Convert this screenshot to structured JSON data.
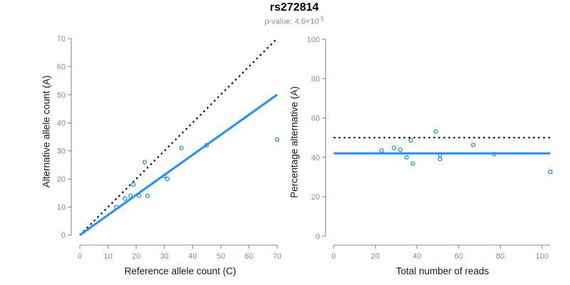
{
  "figure": {
    "title": "rs272814",
    "subtitle_prefix": "p-value: 4.6×10",
    "subtitle_exponent": "-5"
  },
  "colors": {
    "accent_blue": "#1E90FF",
    "reference_line_black": "#000000",
    "axis_gray": "#898989",
    "tick_label_gray": "#8c8c8c",
    "subtitle_gray": "#8c8c8c"
  },
  "chart_data": [
    {
      "type": "scatter",
      "panel": "left",
      "xlabel": "Reference allele count (C)",
      "ylabel": "Alternative allele count (A)",
      "xlim": [
        0,
        70
      ],
      "ylim": [
        0,
        70
      ],
      "xticks": [
        0,
        10,
        20,
        30,
        40,
        50,
        60,
        70
      ],
      "yticks": [
        0,
        10,
        20,
        30,
        40,
        50,
        60,
        70
      ],
      "grid": false,
      "legend": "none",
      "points": [
        [
          13,
          10
        ],
        [
          16,
          13
        ],
        [
          18,
          14
        ],
        [
          19,
          18
        ],
        [
          21,
          14
        ],
        [
          23,
          26
        ],
        [
          24,
          14
        ],
        [
          30,
          21
        ],
        [
          31,
          20
        ],
        [
          36,
          31
        ],
        [
          45,
          32
        ],
        [
          70,
          34
        ]
      ],
      "reference_line": {
        "style": "dotted",
        "from": [
          0,
          0
        ],
        "to": [
          70,
          70
        ],
        "meaning": "identity y=x"
      },
      "fit_line": {
        "style": "solid",
        "from": [
          0,
          0
        ],
        "to": [
          70,
          50
        ]
      }
    },
    {
      "type": "scatter",
      "panel": "right",
      "xlabel": "Total number of reads",
      "ylabel": "Percentage alternative (A)",
      "xlim": [
        0,
        104
      ],
      "ylim": [
        0,
        100
      ],
      "xticks": [
        0,
        20,
        40,
        60,
        80,
        100
      ],
      "yticks": [
        0,
        20,
        40,
        60,
        80,
        100
      ],
      "grid": false,
      "legend": "none",
      "points": [
        [
          23,
          43.5
        ],
        [
          29,
          44.8
        ],
        [
          32,
          43.8
        ],
        [
          35,
          40
        ],
        [
          37,
          48.6
        ],
        [
          38,
          36.8
        ],
        [
          49,
          53.1
        ],
        [
          51,
          41.2
        ],
        [
          51,
          39.2
        ],
        [
          67,
          46.3
        ],
        [
          77,
          41.6
        ],
        [
          104,
          32.7
        ]
      ],
      "reference_line": {
        "style": "dotted",
        "y": 50,
        "meaning": "50% expectation"
      },
      "fit_line": {
        "style": "solid",
        "y": 42
      }
    }
  ]
}
